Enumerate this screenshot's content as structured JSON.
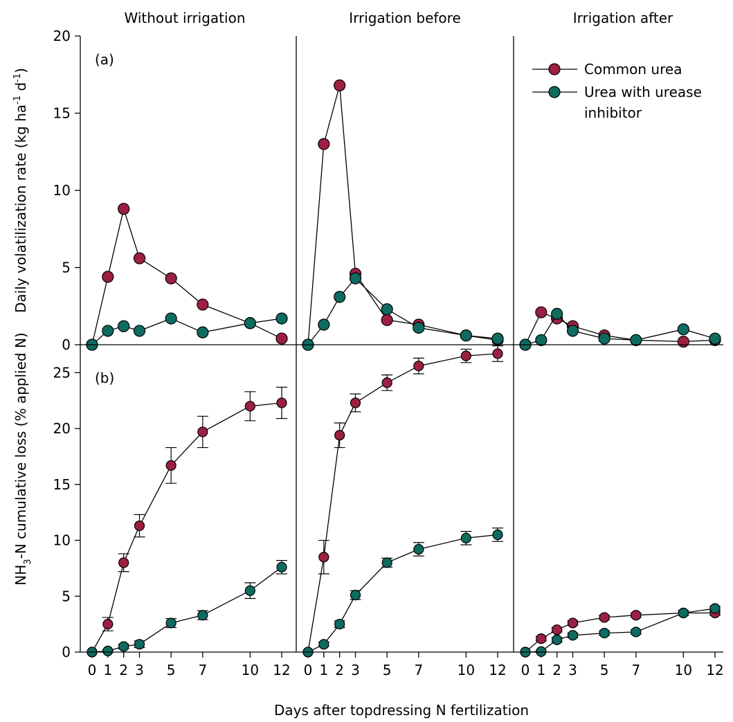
{
  "colors": {
    "common": "#9b2042",
    "inhibitor": "#0f6b5f"
  },
  "titles": {
    "p1": "Without irrigation",
    "p2": "Irrigation before",
    "p3": "Irrigation after"
  },
  "labels": {
    "a": "(a)",
    "b": "(b)"
  },
  "xlabel": "Days after topdressing N fertilization",
  "ylabel_a": {
    "main": "Daily volatilization rate (kg ha",
    "sup1": "-1",
    "mid": " d",
    "sup2": "-1",
    "end": ")"
  },
  "ylabel_b": {
    "pre": "NH",
    "sub": "3",
    "post": "-N cumulative loss (% applied N)"
  },
  "legend": {
    "placement": "top-right of third panel (a)",
    "common": "Common urea",
    "inhibitor_line1": "Urea with urease",
    "inhibitor_line2": "inhibitor"
  },
  "chart_data": [
    {
      "type": "line",
      "panel": "a",
      "ylim": [
        0,
        20
      ],
      "yticks": [
        "0",
        "5",
        "10",
        "15",
        "20"
      ],
      "x": [
        0,
        1,
        2,
        3,
        5,
        7,
        10,
        12
      ],
      "xticks": [
        "0",
        "1",
        "2",
        "3",
        "5",
        "7",
        "10",
        "12"
      ],
      "groups": [
        {
          "title": "Without irrigation",
          "series": [
            {
              "name": "Common urea",
              "values": [
                0,
                4.4,
                8.8,
                5.6,
                4.3,
                2.6,
                1.4,
                0.4
              ]
            },
            {
              "name": "Urea with urease inhibitor",
              "values": [
                0,
                0.9,
                1.2,
                0.9,
                1.7,
                0.8,
                1.4,
                1.7
              ]
            }
          ]
        },
        {
          "title": "Irrigation before",
          "series": [
            {
              "name": "Common urea",
              "values": [
                0,
                13.0,
                16.8,
                4.6,
                1.6,
                1.3,
                0.6,
                0.3
              ]
            },
            {
              "name": "Urea with urease inhibitor",
              "values": [
                0,
                1.3,
                3.1,
                4.3,
                2.3,
                1.1,
                0.6,
                0.4
              ]
            }
          ]
        },
        {
          "title": "Irrigation after",
          "series": [
            {
              "name": "Common urea",
              "values": [
                0,
                2.1,
                1.7,
                1.2,
                0.6,
                0.3,
                0.2,
                0.3
              ]
            },
            {
              "name": "Urea with urease inhibitor",
              "values": [
                0,
                0.3,
                2.0,
                0.9,
                0.4,
                0.3,
                1.0,
                0.4
              ]
            }
          ]
        }
      ]
    },
    {
      "type": "line",
      "panel": "b",
      "ylim": [
        0,
        27.5
      ],
      "yticks": [
        "0",
        "5",
        "10",
        "15",
        "20",
        "25"
      ],
      "x": [
        0,
        1,
        2,
        3,
        5,
        7,
        10,
        12
      ],
      "xticks": [
        "0",
        "1",
        "2",
        "3",
        "5",
        "7",
        "10",
        "12"
      ],
      "groups": [
        {
          "title": "Without irrigation",
          "series": [
            {
              "name": "Common urea",
              "values": [
                0,
                2.5,
                8.0,
                11.3,
                16.7,
                19.7,
                22.0,
                22.3
              ],
              "err": [
                0,
                0.6,
                0.8,
                1.0,
                1.6,
                1.4,
                1.3,
                1.4
              ]
            },
            {
              "name": "Urea with urease inhibitor",
              "values": [
                0,
                0.1,
                0.5,
                0.7,
                2.6,
                3.3,
                5.5,
                7.6
              ],
              "err": [
                0,
                0.1,
                0.2,
                0.3,
                0.4,
                0.4,
                0.7,
                0.6
              ]
            }
          ]
        },
        {
          "title": "Irrigation before",
          "series": [
            {
              "name": "Common urea",
              "values": [
                0,
                8.5,
                19.4,
                22.3,
                24.1,
                25.6,
                26.5,
                26.7
              ],
              "err": [
                0,
                1.5,
                1.1,
                0.8,
                0.7,
                0.7,
                0.6,
                0.7
              ]
            },
            {
              "name": "Urea with urease inhibitor",
              "values": [
                0,
                0.7,
                2.5,
                5.1,
                8.0,
                9.2,
                10.2,
                10.5
              ],
              "err": [
                0,
                0.2,
                0.3,
                0.4,
                0.4,
                0.6,
                0.6,
                0.6
              ]
            }
          ]
        },
        {
          "title": "Irrigation after",
          "series": [
            {
              "name": "Common urea",
              "values": [
                0,
                1.2,
                2.0,
                2.6,
                3.1,
                3.3,
                3.5,
                3.5
              ],
              "err": [
                0,
                0.2,
                0.2,
                0.2,
                0.2,
                0.2,
                0.2,
                0.2
              ]
            },
            {
              "name": "Urea with urease inhibitor",
              "values": [
                0,
                0.05,
                1.1,
                1.5,
                1.7,
                1.8,
                3.5,
                3.9
              ],
              "err": [
                0,
                0.05,
                0.2,
                0.2,
                0.2,
                0.2,
                0.2,
                0.2
              ]
            }
          ]
        }
      ]
    }
  ]
}
